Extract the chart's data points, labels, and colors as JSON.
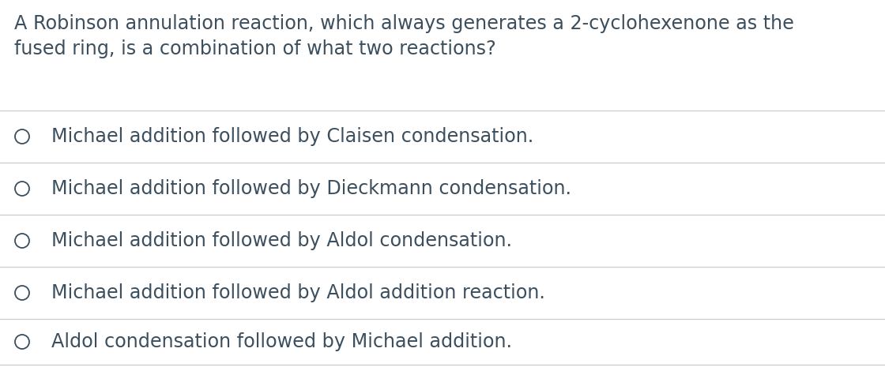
{
  "background_color": "#ffffff",
  "question_text_line1": "A Robinson annulation reaction, which always generates a 2-cyclohexenone as the",
  "question_text_line2": "fused ring, is a combination of what two reactions?",
  "options": [
    "Michael addition followed by Claisen condensation.",
    "Michael addition followed by Dieckmann condensation.",
    "Michael addition followed by Aldol condensation.",
    "Michael addition followed by Aldol addition reaction.",
    "Aldol condensation followed by Michael addition."
  ],
  "text_color": "#3c4f5e",
  "line_color": "#cccccc",
  "question_fontsize": 17.2,
  "option_fontsize": 17.2,
  "circle_color": "#3c4f5e"
}
